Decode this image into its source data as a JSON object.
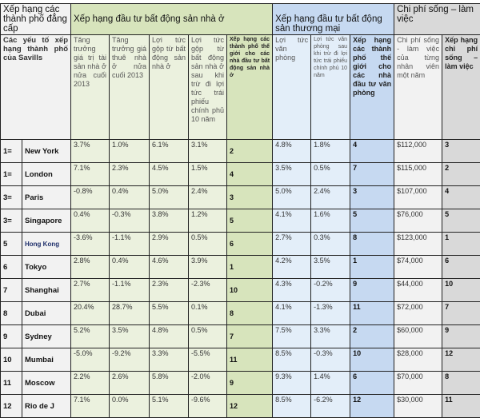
{
  "headers": {
    "group0": "Xếp hạng các thành phố đẳng cấp",
    "group1": "Xếp hạng đầu tư bất động sản nhà ở",
    "group2": "Xếp hạng đầu tư bất động sản thương mại",
    "group3": "Chi phí sống – làm việc",
    "sub": [
      "Các yếu tố xếp hạng thành phố của Savills",
      "Tăng trưởng giá trị tài sản nhà ở nửa cuối 2013",
      "Tăng trưởng giá thuê nhà ở nửa cuối 2013",
      "Lợi tức gộp từ bất động sản nhà ở",
      "Lợi tức gộp từ bất động sản nhà ở sau khi trừ đi lợi tức trái phiếu chính phủ 10 năm",
      "Xếp hạng các thành phố thế giới cho các nhà đầu tư bất động sản nhà ở",
      "Lợi tức văn phòng",
      "Lợi tức văn phòng sau khi trừ đi lợi tức trái phiếu chính phủ 10 năm",
      "Xếp hạng các thành phố thế giới cho các nhà đầu tư văn phòng",
      "Chi phí sống - làm việc của từng nhân viên một năm",
      "Xếp hạng chi phí sống – làm việc"
    ]
  },
  "rows": [
    [
      "1=",
      "New York",
      "3.7%",
      "1.0%",
      "6.1%",
      "3.1%",
      "2",
      "4.8%",
      "1.8%",
      "4",
      "$112,000",
      "3"
    ],
    [
      "1=",
      "London",
      "7.1%",
      "2.3%",
      "4.5%",
      "1.5%",
      "4",
      "3.5%",
      "0.5%",
      "7",
      "$115,000",
      "2"
    ],
    [
      "3=",
      "Paris",
      "-0.8%",
      "0.4%",
      "5.0%",
      "2.4%",
      "3",
      "5.0%",
      "2.4%",
      "3",
      "$107,000",
      "4"
    ],
    [
      "3=",
      "Singapore",
      "0.4%",
      "-0.3%",
      "3.8%",
      "1.2%",
      "5",
      "4.1%",
      "1.6%",
      "5",
      "$76,000",
      "5"
    ],
    [
      "5",
      "Hong Kong",
      "-3.6%",
      "-1.1%",
      "2.9%",
      "0.5%",
      "6",
      "2.7%",
      "0.3%",
      "8",
      "$123,000",
      "1"
    ],
    [
      "6",
      "Tokyo",
      "2.8%",
      "0.4%",
      "4.6%",
      "3.9%",
      "1",
      "4.2%",
      "3.5%",
      "1",
      "$74,000",
      "6"
    ],
    [
      "7",
      "Shanghai",
      "2.7%",
      "-1.1%",
      "2.3%",
      "-2.3%",
      "10",
      "4.3%",
      "-0.2%",
      "9",
      "$44,000",
      "10"
    ],
    [
      "8",
      "Dubai",
      "20.4%",
      "28.7%",
      "5.5%",
      "0.1%",
      "8",
      "4.1%",
      "-1.3%",
      "11",
      "$72,000",
      "7"
    ],
    [
      "9",
      "Sydney",
      "5.2%",
      "3.5%",
      "4.8%",
      "0.5%",
      "7",
      "7.5%",
      "3.3%",
      "2",
      "$60,000",
      "9"
    ],
    [
      "10",
      "Mumbai",
      "-5.0%",
      "-9.2%",
      "3.3%",
      "-5.5%",
      "11",
      "8.5%",
      "-0.3%",
      "10",
      "$28,000",
      "12"
    ],
    [
      "11",
      "Moscow",
      "2.2%",
      "2.6%",
      "5.8%",
      "-2.0%",
      "9",
      "9.3%",
      "1.4%",
      "6",
      "$70,000",
      "8"
    ],
    [
      "12",
      "Rio de J",
      "7.1%",
      "0.0%",
      "5.1%",
      "-9.6%",
      "12",
      "8.5%",
      "-6.2%",
      "12",
      "$30,000",
      "11"
    ]
  ]
}
